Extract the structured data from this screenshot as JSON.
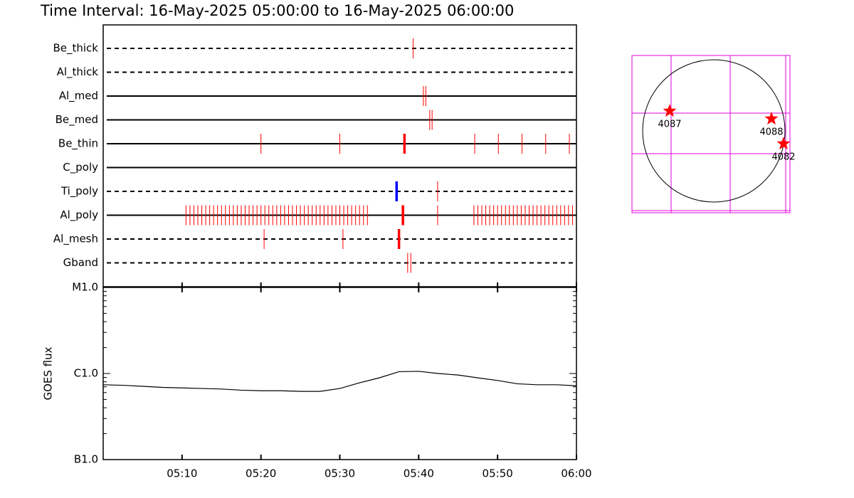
{
  "chart_data": [
    {
      "type": "timeline",
      "title": "Time Interval: 16-May-2025 05:00:00 to 16-May-2025 06:00:00",
      "xlim": [
        0,
        60
      ],
      "xticks": [
        10,
        20,
        30,
        40,
        50,
        60
      ],
      "color": "#ff0000",
      "rows": [
        {
          "name": "Be_thick",
          "style": "dashed",
          "times": [
            39.3
          ],
          "bold_times": []
        },
        {
          "name": "Al_thick",
          "style": "dashed",
          "times": [],
          "bold_times": []
        },
        {
          "name": "Al_med",
          "style": "solid",
          "times": [
            40.6,
            40.9
          ],
          "bold_times": []
        },
        {
          "name": "Be_med",
          "style": "solid",
          "times": [
            41.4,
            41.7
          ],
          "bold_times": []
        },
        {
          "name": "Be_thin",
          "style": "solid",
          "times": [
            20.0,
            30.0,
            47.1,
            50.1,
            53.1,
            56.1,
            59.1
          ],
          "bold_times": [
            38.2
          ],
          "bold_color": "#ff0000"
        },
        {
          "name": "C_poly",
          "style": "solid",
          "times": [],
          "bold_times": []
        },
        {
          "name": "Ti_poly",
          "style": "dashed",
          "times": [
            42.4
          ],
          "bold_times": [
            37.2
          ],
          "bold_color": "#0000ff"
        },
        {
          "name": "Al_poly",
          "style": "solid",
          "times": [
            10.5,
            11,
            11.5,
            12,
            12.5,
            13,
            13.5,
            14,
            14.5,
            15,
            15.5,
            16,
            16.5,
            17,
            17.5,
            18,
            18.5,
            19,
            19.5,
            20,
            20.5,
            21,
            21.5,
            22,
            22.5,
            23,
            23.5,
            24,
            24.5,
            25,
            25.5,
            26,
            26.5,
            27,
            27.5,
            28,
            28.5,
            29,
            29.5,
            30,
            30.5,
            31,
            31.5,
            32,
            32.5,
            33,
            33.5,
            42.4,
            47,
            47.5,
            48,
            48.5,
            49,
            49.5,
            50,
            50.5,
            51,
            51.5,
            52,
            52.5,
            53,
            53.5,
            54,
            54.5,
            55,
            55.5,
            56,
            56.5,
            57,
            57.5,
            58,
            58.5,
            59,
            59.5
          ],
          "bold_times": [
            38.0
          ],
          "bold_color": "#ff0000"
        },
        {
          "name": "Al_mesh",
          "style": "dashed",
          "times": [
            20.4,
            30.4
          ],
          "bold_times": [
            37.5
          ],
          "bold_color": "#ff0000"
        },
        {
          "name": "Gband",
          "style": "dashed",
          "times": [
            38.6,
            39.0
          ],
          "bold_times": []
        }
      ]
    },
    {
      "type": "line",
      "ylabel": "GOES flux",
      "log_scale": true,
      "color": "#000000",
      "x": [
        0,
        2.5,
        5,
        7.5,
        10,
        12.5,
        15,
        17.5,
        20,
        22.5,
        25,
        27.5,
        30,
        32.5,
        35,
        37.5,
        40,
        42.5,
        45,
        47.5,
        50,
        52.5,
        55,
        57.5,
        60
      ],
      "values": [
        7.4e-07,
        7.3e-07,
        7.1e-07,
        6.9e-07,
        6.8e-07,
        6.7e-07,
        6.6e-07,
        6.4e-07,
        6.3e-07,
        6.3e-07,
        6.2e-07,
        6.2e-07,
        6.7e-07,
        7.8e-07,
        8.9e-07,
        1.05e-06,
        1.06e-06,
        1e-06,
        9.6e-07,
        8.9e-07,
        8.3e-07,
        7.6e-07,
        7.4e-07,
        7.4e-07,
        7.2e-07
      ],
      "xlim": [
        0,
        60
      ],
      "xticks": [
        {
          "value": 10,
          "label": "05:10"
        },
        {
          "value": 20,
          "label": "05:20"
        },
        {
          "value": 30,
          "label": "05:30"
        },
        {
          "value": 40,
          "label": "05:40"
        },
        {
          "value": 50,
          "label": "05:50"
        },
        {
          "value": 60,
          "label": "06:00"
        }
      ],
      "ylim": [
        1e-07,
        1e-05
      ],
      "yticks": [
        {
          "value": 1e-07,
          "label": "B1.0"
        },
        {
          "value": 1e-06,
          "label": "C1.0"
        },
        {
          "value": 1e-05,
          "label": "M1.0"
        }
      ],
      "yminor": [
        2e-07,
        3e-07,
        4e-07,
        5e-07,
        6e-07,
        7e-07,
        8e-07,
        9e-07,
        2e-06,
        3e-06,
        4e-06,
        5e-06,
        6e-06,
        7e-06,
        8e-06,
        9e-06
      ]
    },
    {
      "type": "map",
      "xlim": [
        -1.15,
        1.07
      ],
      "ylim": [
        -1.15,
        1.06
      ],
      "color": "#ff0000",
      "points": [
        {
          "label": "4087",
          "x": -0.62,
          "y": 0.28
        },
        {
          "label": "4088",
          "x": 0.81,
          "y": 0.17
        },
        {
          "label": "4082",
          "x": 0.98,
          "y": -0.18
        }
      ]
    }
  ]
}
